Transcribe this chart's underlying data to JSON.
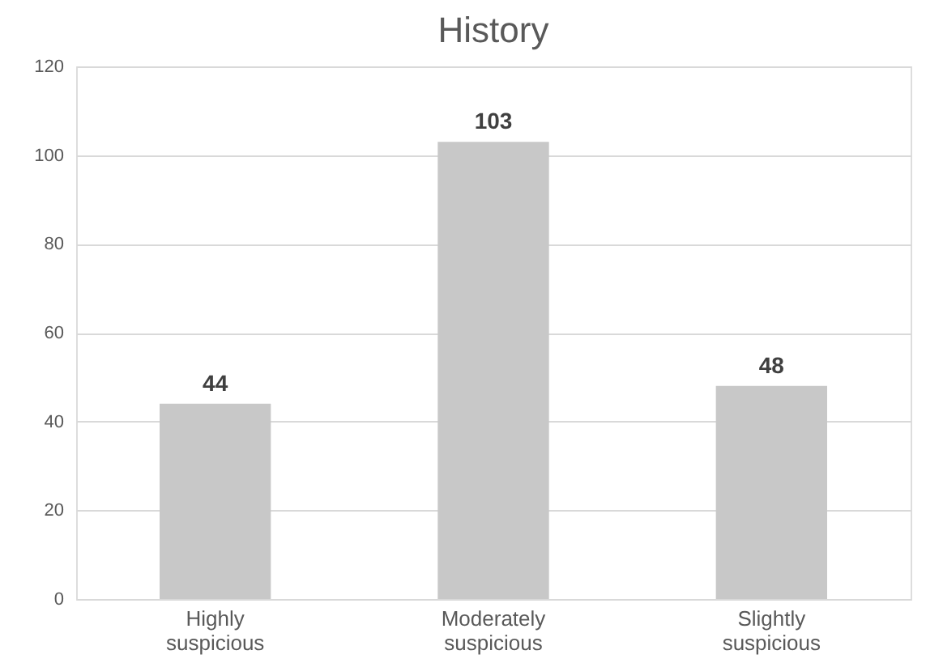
{
  "chart_data": {
    "type": "bar",
    "title": "History",
    "categories": [
      "Highly suspicious",
      "Moderately suspicious",
      "Slightly suspicious"
    ],
    "values": [
      44,
      103,
      48
    ],
    "color": "#c8c8c8",
    "ylim": [
      0,
      120
    ],
    "yticks": [
      0,
      20,
      40,
      60,
      80,
      100,
      120
    ],
    "grid": "y",
    "data_labels": true
  }
}
